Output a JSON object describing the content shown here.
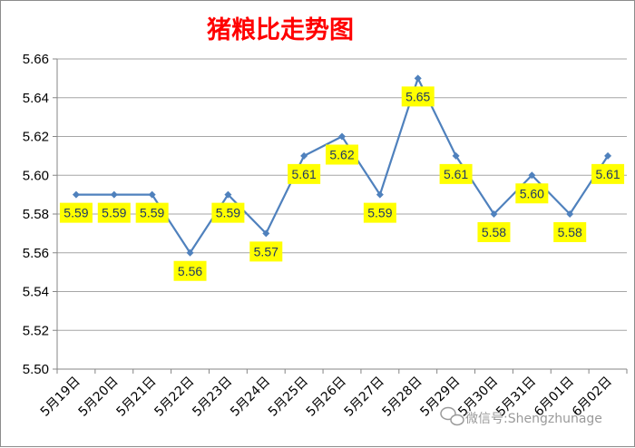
{
  "watermark": {
    "text": "微信号:Shengzhunage",
    "icon": "wechat-icon"
  },
  "chart_data": {
    "type": "line",
    "title": "猪粮比走势图",
    "xlabel": "",
    "ylabel": "",
    "categories": [
      "5月19日",
      "5月20日",
      "5月21日",
      "5月22日",
      "5月23日",
      "5月24日",
      "5月25日",
      "5月26日",
      "5月27日",
      "5月28日",
      "5月29日",
      "5月30日",
      "5月31日",
      "6月01日",
      "6月02日"
    ],
    "series": [
      {
        "values": [
          5.59,
          5.59,
          5.59,
          5.56,
          5.59,
          5.57,
          5.61,
          5.62,
          5.59,
          5.65,
          5.61,
          5.58,
          5.6,
          5.58,
          5.61
        ]
      }
    ],
    "data_labels": [
      "5.59",
      "5.59",
      "5.59",
      "5.56",
      "5.59",
      "5.57",
      "5.61",
      "5.62",
      "5.59",
      "5.65",
      "5.61",
      "5.58",
      "5.60",
      "5.58",
      "5.61"
    ],
    "ylim": [
      5.5,
      5.66
    ],
    "yticks": [
      "5.50",
      "5.52",
      "5.54",
      "5.56",
      "5.58",
      "5.60",
      "5.62",
      "5.64",
      "5.66"
    ],
    "grid": true,
    "legend": "none",
    "colors": {
      "line": "#4f81bd",
      "grid": "#a6a6a6",
      "label_bg": "#ffff00",
      "title": "#ff0000"
    }
  }
}
